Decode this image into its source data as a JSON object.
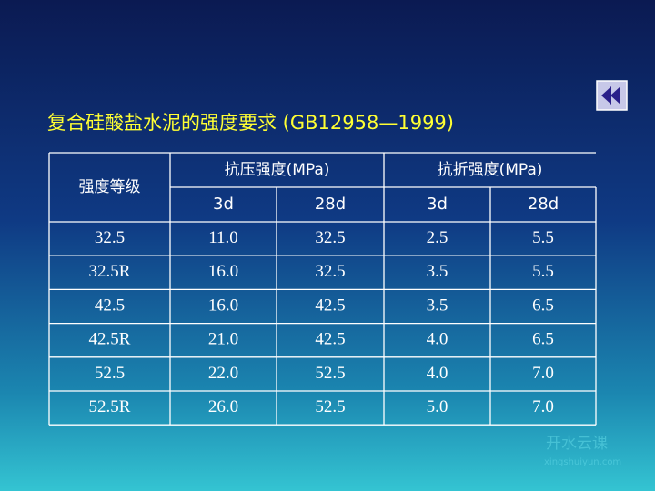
{
  "title": "复合硅酸盐水泥的强度要求 (GB12958—1999)",
  "table": {
    "header": [
      "强度等级",
      "抗压强度(MPa)",
      "抗折强度(MPa)"
    ],
    "subheader": [
      "3d",
      "28d",
      "3d",
      "28d"
    ],
    "rows": [
      [
        "32.5",
        "11.0",
        "32.5",
        "2.5",
        "5.5"
      ],
      [
        "32.5R",
        "16.0",
        "32.5",
        "3.5",
        "5.5"
      ],
      [
        "42.5",
        "16.0",
        "42.5",
        "3.5",
        "6.5"
      ],
      [
        "42.5R",
        "21.0",
        "42.5",
        "4.0",
        "6.5"
      ],
      [
        "52.5",
        "22.0",
        "52.5",
        "4.0",
        "7.0"
      ],
      [
        "52.5R",
        "26.0",
        "52.5",
        "5.0",
        "7.0"
      ]
    ]
  },
  "watermark": {
    "name": "开水云课",
    "url": "xingshuiyun.com"
  }
}
